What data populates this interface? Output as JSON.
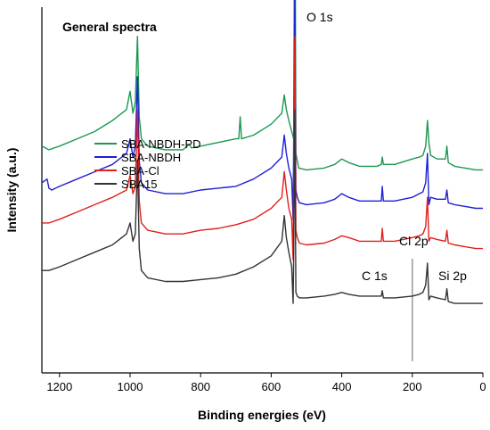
{
  "chart_data": {
    "type": "line",
    "title": "General spectra",
    "xlabel": "Binding energies (eV)",
    "ylabel": "Intensity (a.u.)",
    "xlim": [
      1250,
      0
    ],
    "x_reversed": true,
    "y_tick_labels": false,
    "x_ticks": [
      1200,
      1000,
      800,
      600,
      400,
      200,
      0
    ],
    "legend_position": "center-left",
    "series": [
      {
        "name": "SBA-NBDH-PD",
        "color": "#1a9850",
        "points": [
          [
            1250,
            0.62
          ],
          [
            1230,
            0.61
          ],
          [
            1200,
            0.62
          ],
          [
            1150,
            0.64
          ],
          [
            1100,
            0.66
          ],
          [
            1050,
            0.69
          ],
          [
            1010,
            0.72
          ],
          [
            1000,
            0.77
          ],
          [
            992,
            0.71
          ],
          [
            985,
            0.74
          ],
          [
            979,
            0.92
          ],
          [
            974,
            0.7
          ],
          [
            968,
            0.64
          ],
          [
            950,
            0.62
          ],
          [
            900,
            0.61
          ],
          [
            850,
            0.61
          ],
          [
            832,
            0.625
          ],
          [
            826,
            0.615
          ],
          [
            800,
            0.62
          ],
          [
            750,
            0.63
          ],
          [
            700,
            0.64
          ],
          [
            692,
            0.64
          ],
          [
            688,
            0.7
          ],
          [
            684,
            0.64
          ],
          [
            650,
            0.65
          ],
          [
            600,
            0.68
          ],
          [
            570,
            0.71
          ],
          [
            563,
            0.76
          ],
          [
            557,
            0.72
          ],
          [
            550,
            0.69
          ],
          [
            542,
            0.66
          ],
          [
            536,
            0.64
          ],
          [
            533,
            1.55
          ],
          [
            530,
            0.6
          ],
          [
            526,
            0.58
          ],
          [
            522,
            0.56
          ],
          [
            500,
            0.555
          ],
          [
            450,
            0.56
          ],
          [
            420,
            0.57
          ],
          [
            400,
            0.585
          ],
          [
            380,
            0.575
          ],
          [
            350,
            0.565
          ],
          [
            300,
            0.565
          ],
          [
            288,
            0.57
          ],
          [
            285,
            0.59
          ],
          [
            282,
            0.57
          ],
          [
            250,
            0.57
          ],
          [
            200,
            0.585
          ],
          [
            180,
            0.59
          ],
          [
            170,
            0.595
          ],
          [
            162,
            0.62
          ],
          [
            157,
            0.69
          ],
          [
            153,
            0.63
          ],
          [
            148,
            0.595
          ],
          [
            130,
            0.585
          ],
          [
            106,
            0.585
          ],
          [
            102,
            0.62
          ],
          [
            98,
            0.575
          ],
          [
            80,
            0.565
          ],
          [
            50,
            0.56
          ],
          [
            20,
            0.555
          ],
          [
            0,
            0.555
          ]
        ]
      },
      {
        "name": "SBA-NBDH",
        "color": "#1f1fd6",
        "points": [
          [
            1250,
            0.52
          ],
          [
            1235,
            0.53
          ],
          [
            1230,
            0.505
          ],
          [
            1222,
            0.5
          ],
          [
            1200,
            0.51
          ],
          [
            1150,
            0.53
          ],
          [
            1100,
            0.55
          ],
          [
            1050,
            0.57
          ],
          [
            1010,
            0.6
          ],
          [
            1000,
            0.64
          ],
          [
            992,
            0.59
          ],
          [
            985,
            0.62
          ],
          [
            979,
            0.81
          ],
          [
            974,
            0.58
          ],
          [
            968,
            0.52
          ],
          [
            950,
            0.5
          ],
          [
            900,
            0.49
          ],
          [
            850,
            0.49
          ],
          [
            800,
            0.5
          ],
          [
            750,
            0.505
          ],
          [
            700,
            0.51
          ],
          [
            650,
            0.53
          ],
          [
            600,
            0.56
          ],
          [
            570,
            0.59
          ],
          [
            563,
            0.65
          ],
          [
            557,
            0.6
          ],
          [
            550,
            0.56
          ],
          [
            542,
            0.53
          ],
          [
            538,
            0.42
          ],
          [
            536,
            0.66
          ],
          [
            533,
            1.02
          ],
          [
            530,
            0.5
          ],
          [
            526,
            0.48
          ],
          [
            520,
            0.465
          ],
          [
            500,
            0.46
          ],
          [
            450,
            0.465
          ],
          [
            420,
            0.475
          ],
          [
            400,
            0.49
          ],
          [
            380,
            0.48
          ],
          [
            350,
            0.47
          ],
          [
            300,
            0.47
          ],
          [
            288,
            0.47
          ],
          [
            285,
            0.51
          ],
          [
            282,
            0.47
          ],
          [
            250,
            0.47
          ],
          [
            200,
            0.48
          ],
          [
            180,
            0.49
          ],
          [
            170,
            0.495
          ],
          [
            162,
            0.52
          ],
          [
            157,
            0.6
          ],
          [
            153,
            0.46
          ],
          [
            148,
            0.48
          ],
          [
            130,
            0.475
          ],
          [
            106,
            0.475
          ],
          [
            102,
            0.5
          ],
          [
            98,
            0.465
          ],
          [
            80,
            0.46
          ],
          [
            50,
            0.455
          ],
          [
            20,
            0.45
          ],
          [
            0,
            0.45
          ]
        ]
      },
      {
        "name": "SBA-Cl",
        "color": "#e0201b",
        "points": [
          [
            1250,
            0.41
          ],
          [
            1230,
            0.41
          ],
          [
            1200,
            0.42
          ],
          [
            1150,
            0.44
          ],
          [
            1100,
            0.46
          ],
          [
            1050,
            0.48
          ],
          [
            1010,
            0.5
          ],
          [
            1000,
            0.54
          ],
          [
            992,
            0.49
          ],
          [
            985,
            0.51
          ],
          [
            979,
            0.72
          ],
          [
            974,
            0.47
          ],
          [
            968,
            0.41
          ],
          [
            950,
            0.39
          ],
          [
            900,
            0.38
          ],
          [
            850,
            0.38
          ],
          [
            800,
            0.39
          ],
          [
            750,
            0.395
          ],
          [
            700,
            0.405
          ],
          [
            650,
            0.42
          ],
          [
            600,
            0.45
          ],
          [
            570,
            0.48
          ],
          [
            563,
            0.55
          ],
          [
            557,
            0.5
          ],
          [
            550,
            0.45
          ],
          [
            542,
            0.42
          ],
          [
            538,
            0.31
          ],
          [
            536,
            0.55
          ],
          [
            533,
            0.92
          ],
          [
            530,
            0.39
          ],
          [
            526,
            0.37
          ],
          [
            520,
            0.355
          ],
          [
            500,
            0.35
          ],
          [
            450,
            0.355
          ],
          [
            420,
            0.365
          ],
          [
            400,
            0.375
          ],
          [
            380,
            0.37
          ],
          [
            350,
            0.36
          ],
          [
            300,
            0.36
          ],
          [
            288,
            0.36
          ],
          [
            285,
            0.395
          ],
          [
            282,
            0.36
          ],
          [
            250,
            0.36
          ],
          [
            200,
            0.37
          ],
          [
            180,
            0.375
          ],
          [
            170,
            0.38
          ],
          [
            162,
            0.4
          ],
          [
            157,
            0.48
          ],
          [
            153,
            0.36
          ],
          [
            148,
            0.37
          ],
          [
            130,
            0.365
          ],
          [
            106,
            0.36
          ],
          [
            102,
            0.39
          ],
          [
            98,
            0.355
          ],
          [
            80,
            0.35
          ],
          [
            50,
            0.345
          ],
          [
            20,
            0.34
          ],
          [
            0,
            0.34
          ]
        ]
      },
      {
        "name": "SBA15",
        "color": "#333333",
        "points": [
          [
            1250,
            0.28
          ],
          [
            1230,
            0.28
          ],
          [
            1200,
            0.29
          ],
          [
            1150,
            0.31
          ],
          [
            1100,
            0.33
          ],
          [
            1050,
            0.35
          ],
          [
            1010,
            0.38
          ],
          [
            1000,
            0.41
          ],
          [
            992,
            0.36
          ],
          [
            985,
            0.38
          ],
          [
            979,
            0.58
          ],
          [
            974,
            0.34
          ],
          [
            968,
            0.28
          ],
          [
            950,
            0.26
          ],
          [
            900,
            0.25
          ],
          [
            850,
            0.25
          ],
          [
            800,
            0.255
          ],
          [
            750,
            0.26
          ],
          [
            700,
            0.27
          ],
          [
            650,
            0.29
          ],
          [
            600,
            0.32
          ],
          [
            570,
            0.36
          ],
          [
            563,
            0.43
          ],
          [
            557,
            0.37
          ],
          [
            550,
            0.33
          ],
          [
            542,
            0.29
          ],
          [
            538,
            0.19
          ],
          [
            536,
            0.33
          ],
          [
            533,
            0.72
          ],
          [
            530,
            0.22
          ],
          [
            526,
            0.21
          ],
          [
            520,
            0.205
          ],
          [
            500,
            0.205
          ],
          [
            450,
            0.21
          ],
          [
            420,
            0.215
          ],
          [
            400,
            0.22
          ],
          [
            380,
            0.215
          ],
          [
            350,
            0.21
          ],
          [
            300,
            0.21
          ],
          [
            288,
            0.21
          ],
          [
            285,
            0.225
          ],
          [
            282,
            0.205
          ],
          [
            250,
            0.205
          ],
          [
            200,
            0.21
          ],
          [
            180,
            0.215
          ],
          [
            170,
            0.22
          ],
          [
            162,
            0.24
          ],
          [
            157,
            0.3
          ],
          [
            153,
            0.2
          ],
          [
            148,
            0.21
          ],
          [
            130,
            0.205
          ],
          [
            106,
            0.2
          ],
          [
            102,
            0.23
          ],
          [
            98,
            0.195
          ],
          [
            80,
            0.19
          ],
          [
            50,
            0.19
          ],
          [
            20,
            0.19
          ],
          [
            0,
            0.19
          ]
        ]
      }
    ],
    "annotations": [
      {
        "text": "O 1s",
        "x": 533
      },
      {
        "text": "Cl 2p",
        "x": 200
      },
      {
        "text": "C 1s",
        "x": 285
      },
      {
        "text": "Si 2p",
        "x": 103
      }
    ],
    "reference_line": {
      "x": 200,
      "color": "#999999"
    }
  }
}
